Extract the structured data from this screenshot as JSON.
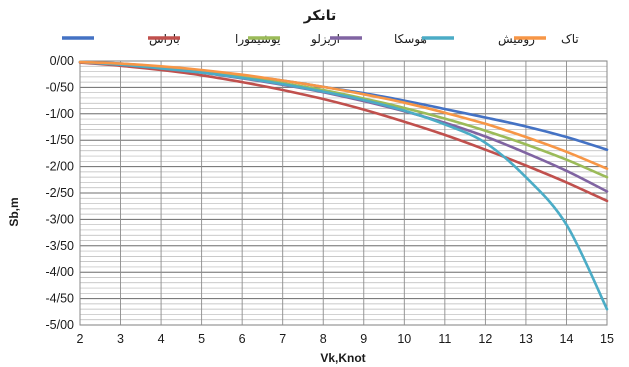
{
  "chart_data": {
    "type": "line",
    "title": "تانکر",
    "xlabel": "Vk,Knot",
    "ylabel": "Sb,m",
    "x": [
      2,
      3,
      4,
      5,
      6,
      7,
      8,
      9,
      10,
      11,
      12,
      13,
      14,
      15
    ],
    "xlim": [
      2,
      15
    ],
    "ylim": [
      -5,
      0
    ],
    "yticks": [
      "0/00",
      "-0/50",
      "-1/00",
      "-1/50",
      "-2/00",
      "-2/50",
      "-3/00",
      "-3/50",
      "-4/00",
      "-4/50",
      "-5/00"
    ],
    "xticks": [
      "2",
      "3",
      "4",
      "5",
      "6",
      "7",
      "8",
      "9",
      "10",
      "11",
      "12",
      "13",
      "14",
      "15"
    ],
    "grid": true,
    "legend_position": "top",
    "series": [
      {
        "name": "باراس",
        "color": "#4472C4",
        "values": [
          -0.02,
          -0.05,
          -0.11,
          -0.19,
          -0.28,
          -0.37,
          -0.49,
          -0.61,
          -0.75,
          -0.91,
          -1.07,
          -1.24,
          -1.44,
          -1.68
        ]
      },
      {
        "name": "یوشیمورا",
        "color": "#C0504D",
        "values": [
          -0.03,
          -0.09,
          -0.17,
          -0.27,
          -0.4,
          -0.55,
          -0.72,
          -0.92,
          -1.15,
          -1.4,
          -1.68,
          -1.98,
          -2.3,
          -2.65
        ]
      },
      {
        "name": "اریزلو",
        "color": "#9BBB59",
        "values": [
          -0.02,
          -0.06,
          -0.12,
          -0.2,
          -0.3,
          -0.42,
          -0.55,
          -0.71,
          -0.89,
          -1.09,
          -1.32,
          -1.58,
          -1.87,
          -2.2
        ]
      },
      {
        "name": "هوسکا",
        "color": "#8064A2",
        "values": [
          -0.02,
          -0.07,
          -0.14,
          -0.22,
          -0.33,
          -0.45,
          -0.59,
          -0.76,
          -0.95,
          -1.17,
          -1.43,
          -1.74,
          -2.08,
          -2.47
        ]
      },
      {
        "name": "رومیش",
        "color": "#4BACC6",
        "values": [
          -0.02,
          -0.07,
          -0.14,
          -0.22,
          -0.32,
          -0.44,
          -0.58,
          -0.74,
          -0.94,
          -1.2,
          -1.55,
          -2.2,
          -3.1,
          -4.7
        ]
      },
      {
        "name": "تاک",
        "color": "#F79646",
        "values": [
          -0.02,
          -0.05,
          -0.1,
          -0.17,
          -0.26,
          -0.37,
          -0.49,
          -0.63,
          -0.79,
          -0.98,
          -1.19,
          -1.44,
          -1.72,
          -2.04
        ]
      }
    ]
  }
}
